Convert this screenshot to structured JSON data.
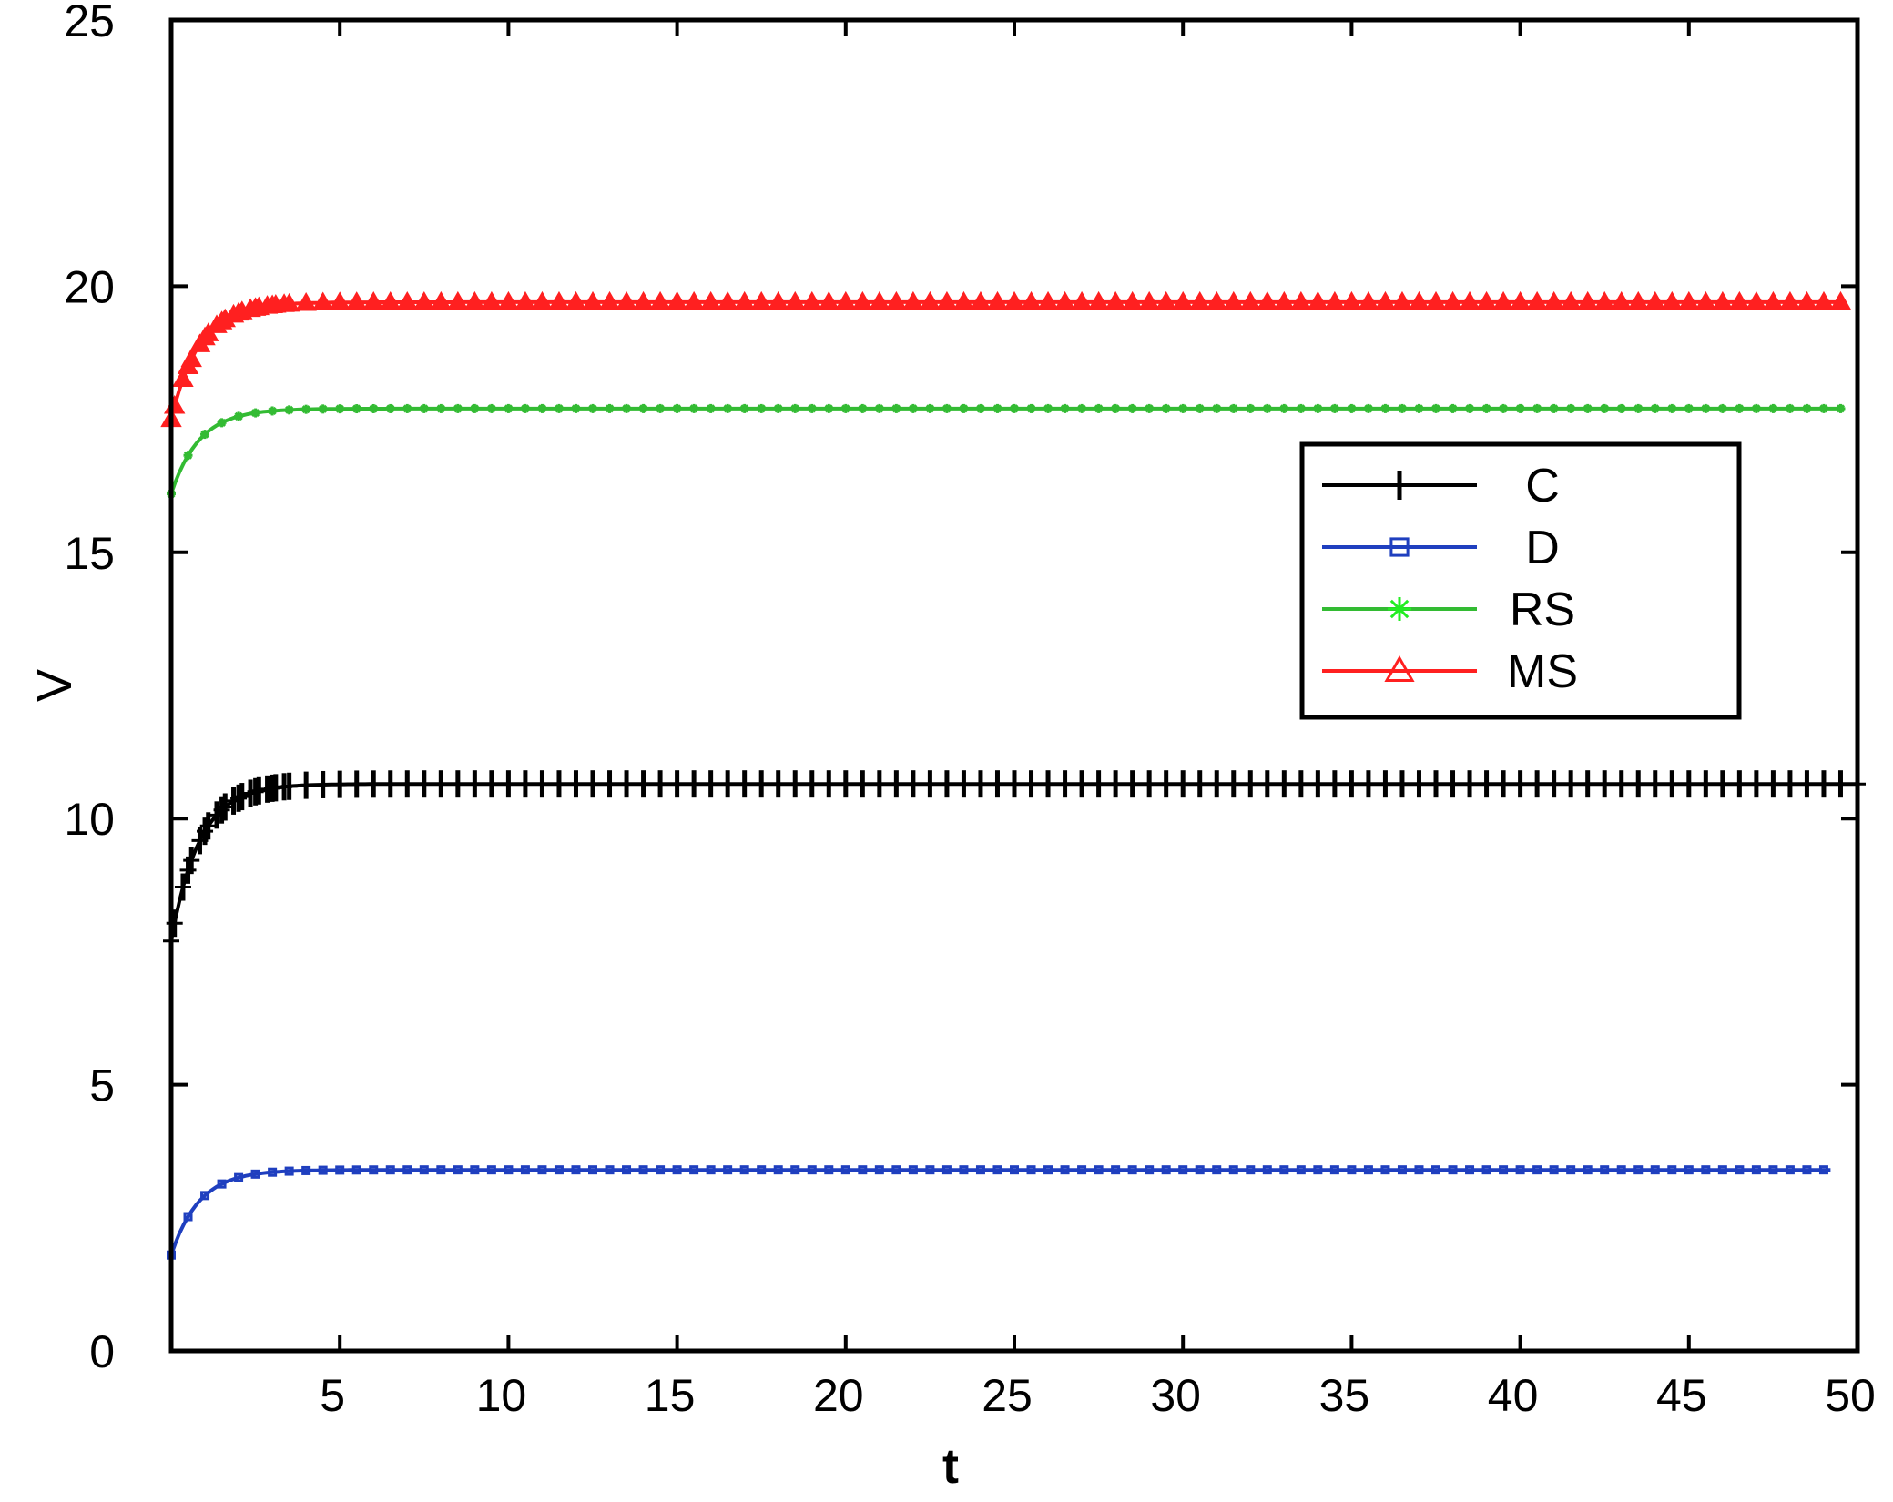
{
  "chart_data": {
    "type": "line",
    "xlabel": "t",
    "ylabel": "V",
    "xlim": [
      0,
      50
    ],
    "ylim": [
      0,
      25
    ],
    "xticks": [
      5,
      10,
      15,
      20,
      25,
      30,
      35,
      40,
      45,
      50
    ],
    "yticks": [
      0,
      5,
      10,
      15,
      20,
      25
    ],
    "grid": false,
    "legend": "right",
    "series": [
      {
        "name": "C",
        "color": "#000000",
        "marker": "plus",
        "start": 7.7,
        "end": 10.65,
        "rate": 1.2,
        "x_end": 50,
        "marker_step": 0.5
      },
      {
        "name": "D",
        "color": "#1f3fbf",
        "marker": "square",
        "start": 1.8,
        "end": 3.4,
        "rate": 1.2,
        "x_end": 49.2,
        "marker_step": 0.5
      },
      {
        "name": "RS",
        "color": "#33bb33",
        "marker": "asterisk",
        "start": 16.1,
        "end": 17.7,
        "rate": 1.2,
        "x_end": 49.6,
        "marker_step": 0.5
      },
      {
        "name": "MS",
        "color": "#ff2020",
        "marker": "triangle",
        "start": 17.5,
        "end": 19.7,
        "rate": 1.2,
        "x_end": 49.5,
        "marker_step": 0.5
      }
    ]
  }
}
